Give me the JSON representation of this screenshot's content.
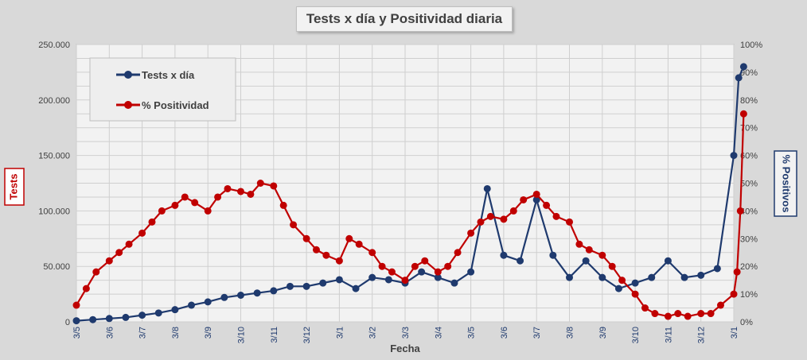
{
  "chart_data": {
    "type": "line",
    "title": "Tests x día y Positividad diaria",
    "xlabel": "Fecha",
    "ylabel": "Tests",
    "y2label": "% Positivos",
    "ylim": [
      0,
      250000
    ],
    "y2lim": [
      0,
      100
    ],
    "grid": true,
    "legend_position": "top-left",
    "y_ticks": [
      "0",
      "50.000",
      "100.000",
      "150.000",
      "200.000",
      "250.000"
    ],
    "y2_ticks": [
      "0%",
      "10%",
      "20%",
      "30%",
      "40%",
      "50%",
      "60%",
      "70%",
      "80%",
      "90%",
      "100%"
    ],
    "x_ticks": [
      "3/5",
      "3/6",
      "3/7",
      "3/8",
      "3/9",
      "3/10",
      "3/11",
      "3/12",
      "3/1",
      "3/2",
      "3/3",
      "3/4",
      "3/5",
      "3/6",
      "3/7",
      "3/8",
      "3/9",
      "3/10",
      "3/11",
      "3/12",
      "3/1"
    ],
    "series": [
      {
        "name": "Tests x día",
        "color": "#1f3a6e",
        "axis": "left",
        "x": [
          0,
          0.5,
          1,
          1.5,
          2,
          2.5,
          3,
          3.5,
          4,
          4.5,
          5,
          5.5,
          6,
          6.5,
          7,
          7.5,
          8,
          8.5,
          9,
          9.5,
          10,
          10.5,
          11,
          11.5,
          12,
          12.5,
          13,
          13.5,
          14,
          14.5,
          15,
          15.5,
          16,
          16.5,
          17,
          17.5,
          18,
          18.5,
          19,
          19.5,
          20,
          20.15,
          20.3
        ],
        "values": [
          1000,
          2000,
          3000,
          4000,
          6000,
          8000,
          11000,
          15000,
          18000,
          22000,
          24000,
          26000,
          28000,
          32000,
          32000,
          35000,
          38000,
          30000,
          40000,
          38000,
          35000,
          45000,
          40000,
          35000,
          45000,
          120000,
          60000,
          55000,
          110000,
          60000,
          40000,
          55000,
          40000,
          30000,
          35000,
          40000,
          55000,
          40000,
          42000,
          48000,
          150000,
          220000,
          230000
        ]
      },
      {
        "name": "% Positividad",
        "color": "#c00000",
        "axis": "right",
        "x": [
          0,
          0.3,
          0.6,
          1,
          1.3,
          1.6,
          2,
          2.3,
          2.6,
          3,
          3.3,
          3.6,
          4,
          4.3,
          4.6,
          5,
          5.3,
          5.6,
          6,
          6.3,
          6.6,
          7,
          7.3,
          7.6,
          8,
          8.3,
          8.6,
          9,
          9.3,
          9.6,
          10,
          10.3,
          10.6,
          11,
          11.3,
          11.6,
          12,
          12.3,
          12.6,
          13,
          13.3,
          13.6,
          14,
          14.3,
          14.6,
          15,
          15.3,
          15.6,
          16,
          16.3,
          16.6,
          17,
          17.3,
          17.6,
          18,
          18.3,
          18.6,
          19,
          19.3,
          19.6,
          20,
          20.1,
          20.2,
          20.3
        ],
        "values": [
          6,
          12,
          18,
          22,
          25,
          28,
          32,
          36,
          40,
          42,
          45,
          43,
          40,
          45,
          48,
          47,
          46,
          50,
          49,
          42,
          35,
          30,
          26,
          24,
          22,
          30,
          28,
          25,
          20,
          18,
          15,
          20,
          22,
          18,
          20,
          25,
          32,
          36,
          38,
          37,
          40,
          44,
          46,
          42,
          38,
          36,
          28,
          26,
          24,
          20,
          15,
          10,
          5,
          3,
          2,
          3,
          2,
          3,
          3,
          6,
          10,
          18,
          40,
          75
        ]
      }
    ]
  }
}
